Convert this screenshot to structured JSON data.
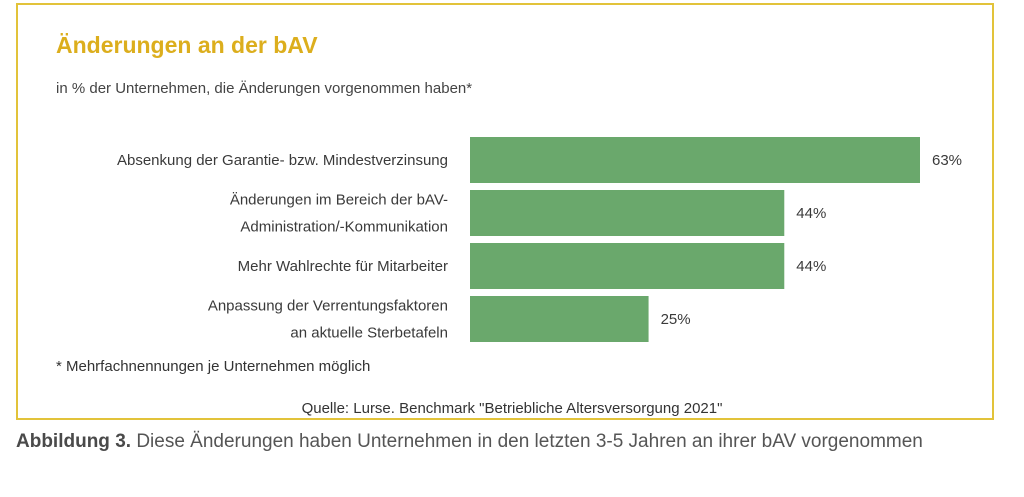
{
  "chart_data": {
    "type": "bar",
    "orientation": "horizontal",
    "title": "Änderungen an der bAV",
    "subtitle": "in % der Unternehmen, die Änderungen vorgenommen haben*",
    "categories": [
      [
        "Absenkung der Garantie- bzw. Mindestverzinsung"
      ],
      [
        "Änderungen im Bereich der bAV-",
        "Administration/-Kommunikation"
      ],
      [
        "Mehr Wahlrechte für Mitarbeiter"
      ],
      [
        "Anpassung der Verrentungsfaktoren",
        "an aktuelle Sterbetafeln"
      ]
    ],
    "values": [
      63,
      44,
      44,
      25
    ],
    "value_labels": [
      "63%",
      "44%",
      "44%",
      "25%"
    ],
    "unit": "%",
    "xlim": [
      0,
      63
    ],
    "grid": false,
    "bar_color": "#6aa86c"
  },
  "footnote": "* Mehrfachnennungen je Unternehmen möglich",
  "source": "Quelle: Lurse. Benchmark \"Betriebliche Altersversorgung 2021\"",
  "caption": {
    "label": "Abbildung 3.",
    "text": " Diese Änderungen haben Unternehmen in den letzten 3-5 Jahren an ihrer bAV vorgenommen"
  },
  "colors": {
    "frame": "#e2c33a",
    "title": "#dcae1d",
    "bar": "#6aa86c"
  }
}
